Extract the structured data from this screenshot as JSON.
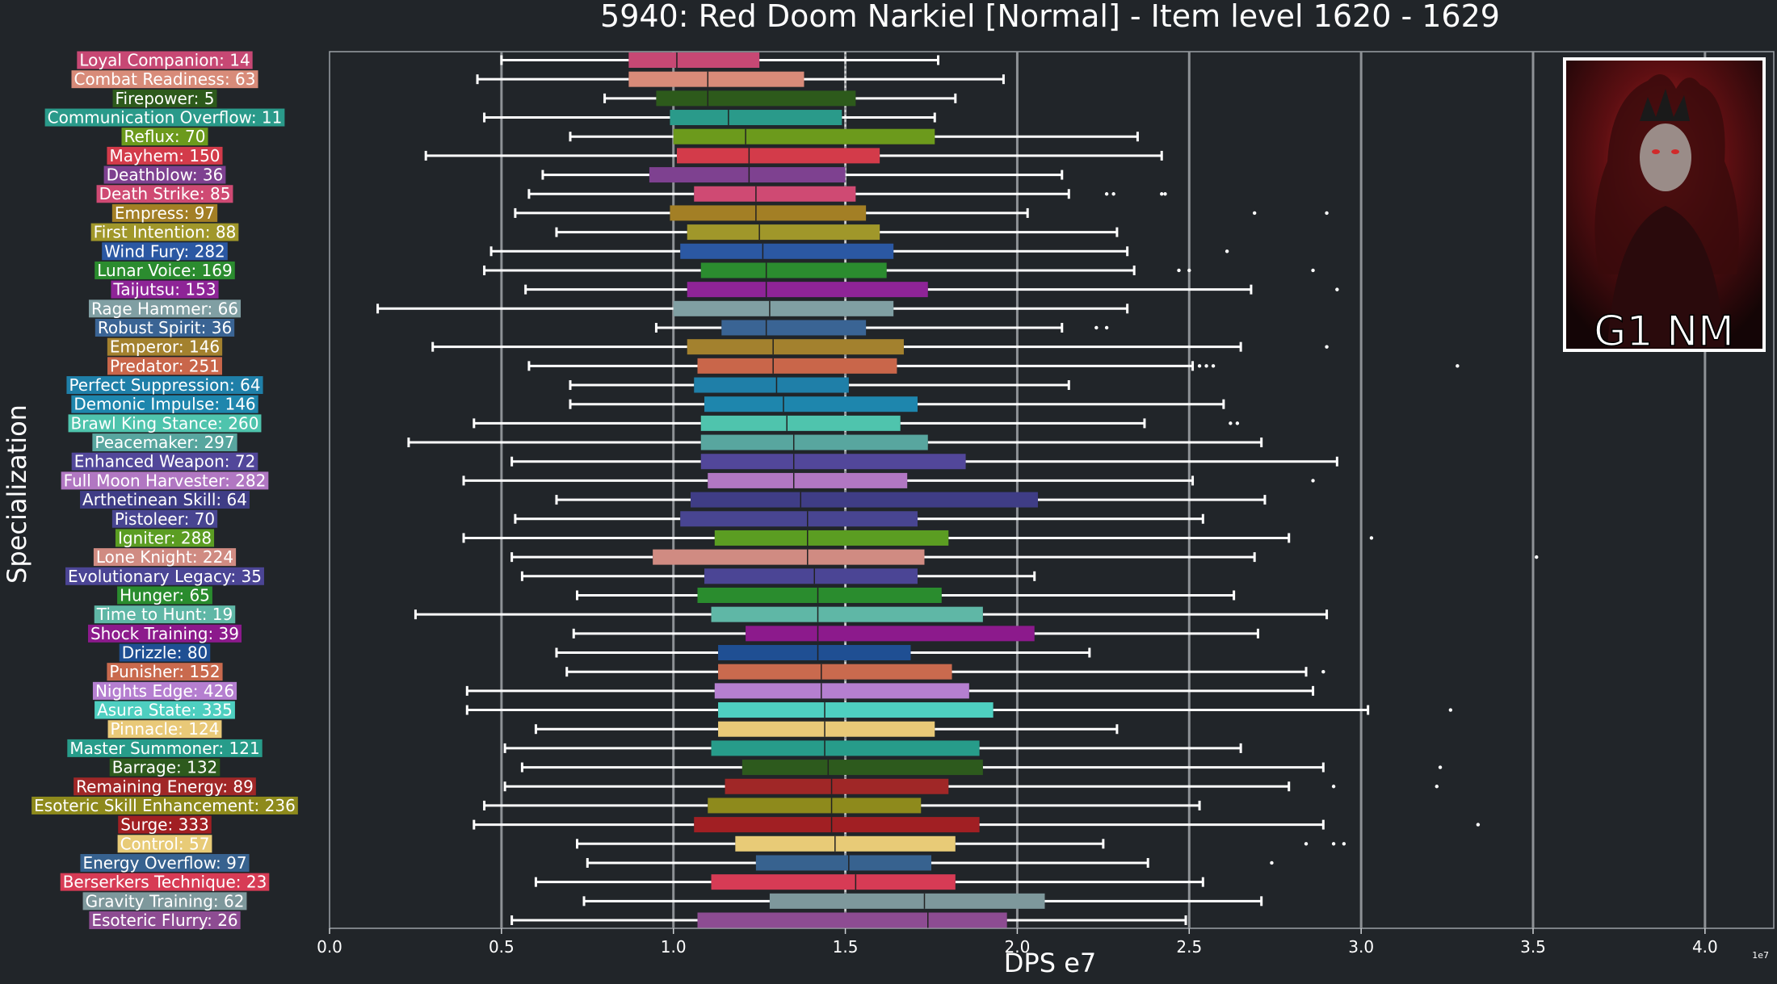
{
  "chart_data": {
    "type": "boxplot",
    "title": "5940: Red Doom Narkiel [Normal] - Item level 1620 - 1629",
    "xlabel": "DPS e7",
    "ylabel": "Specialization",
    "x_offset_label": "1e7",
    "xlim": [
      0,
      4.2
    ],
    "xticks": [
      "0.0",
      "0.5",
      "1.0",
      "1.5",
      "2.0",
      "2.5",
      "3.0",
      "3.5",
      "4.0"
    ],
    "reference_line": 1.5,
    "badge_text": "G1 NM",
    "series": [
      {
        "label": "Loyal Companion: 14",
        "color": "#c74874",
        "whisker_low": 0.5,
        "q1": 0.87,
        "median": 1.01,
        "q3": 1.25,
        "whisker_high": 1.77,
        "outliers": []
      },
      {
        "label": "Combat Readiness: 63",
        "color": "#d88b79",
        "whisker_low": 0.43,
        "q1": 0.87,
        "median": 1.1,
        "q3": 1.38,
        "whisker_high": 1.96,
        "outliers": []
      },
      {
        "label": "Firepower: 5",
        "color": "#2d5a1b",
        "whisker_low": 0.8,
        "q1": 0.95,
        "median": 1.1,
        "q3": 1.53,
        "whisker_high": 1.82,
        "outliers": []
      },
      {
        "label": "Communication Overflow: 11",
        "color": "#2a9a8a",
        "whisker_low": 0.45,
        "q1": 0.99,
        "median": 1.16,
        "q3": 1.49,
        "whisker_high": 1.76,
        "outliers": []
      },
      {
        "label": "Reflux: 70",
        "color": "#6c9a1c",
        "whisker_low": 0.7,
        "q1": 1.0,
        "median": 1.21,
        "q3": 1.76,
        "whisker_high": 2.35,
        "outliers": []
      },
      {
        "label": "Mayhem: 150",
        "color": "#d33b4a",
        "whisker_low": 0.28,
        "q1": 1.01,
        "median": 1.22,
        "q3": 1.6,
        "whisker_high": 2.42,
        "outliers": []
      },
      {
        "label": "Deathblow: 36",
        "color": "#7e4190",
        "whisker_low": 0.62,
        "q1": 0.93,
        "median": 1.22,
        "q3": 1.5,
        "whisker_high": 2.13,
        "outliers": []
      },
      {
        "label": "Death Strike: 85",
        "color": "#cf4a73",
        "whisker_low": 0.58,
        "q1": 1.06,
        "median": 1.24,
        "q3": 1.53,
        "whisker_high": 2.15,
        "outliers": [
          2.26,
          2.28,
          2.42,
          2.43
        ]
      },
      {
        "label": "Empress: 97",
        "color": "#a37f25",
        "whisker_low": 0.54,
        "q1": 0.99,
        "median": 1.24,
        "q3": 1.56,
        "whisker_high": 2.03,
        "outliers": [
          2.69,
          2.9
        ]
      },
      {
        "label": "First Intention: 88",
        "color": "#a0972a",
        "whisker_low": 0.66,
        "q1": 1.04,
        "median": 1.25,
        "q3": 1.6,
        "whisker_high": 2.29,
        "outliers": []
      },
      {
        "label": "Wind Fury: 282",
        "color": "#2b58a3",
        "whisker_low": 0.47,
        "q1": 1.02,
        "median": 1.26,
        "q3": 1.64,
        "whisker_high": 2.32,
        "outliers": [
          2.61
        ]
      },
      {
        "label": "Lunar Voice: 169",
        "color": "#2b8c2f",
        "whisker_low": 0.45,
        "q1": 1.08,
        "median": 1.27,
        "q3": 1.62,
        "whisker_high": 2.34,
        "outliers": [
          2.47,
          2.5,
          2.86
        ]
      },
      {
        "label": "Taijutsu: 153",
        "color": "#8e2497",
        "whisker_low": 0.57,
        "q1": 1.04,
        "median": 1.27,
        "q3": 1.74,
        "whisker_high": 2.68,
        "outliers": [
          2.93
        ]
      },
      {
        "label": "Rage Hammer: 66",
        "color": "#809fa3",
        "whisker_low": 0.14,
        "q1": 1.0,
        "median": 1.28,
        "q3": 1.64,
        "whisker_high": 2.32,
        "outliers": []
      },
      {
        "label": "Robust Spirit: 36",
        "color": "#3a6494",
        "whisker_low": 0.95,
        "q1": 1.14,
        "median": 1.27,
        "q3": 1.56,
        "whisker_high": 2.13,
        "outliers": [
          2.23,
          2.26
        ]
      },
      {
        "label": "Emperor: 146",
        "color": "#a3812e",
        "whisker_low": 0.3,
        "q1": 1.04,
        "median": 1.29,
        "q3": 1.67,
        "whisker_high": 2.65,
        "outliers": [
          2.9
        ]
      },
      {
        "label": "Predator: 251",
        "color": "#c9664a",
        "whisker_low": 0.58,
        "q1": 1.07,
        "median": 1.29,
        "q3": 1.65,
        "whisker_high": 2.51,
        "outliers": [
          2.53,
          2.55,
          2.57,
          3.28
        ]
      },
      {
        "label": "Perfect Suppression: 64",
        "color": "#1f7fa8",
        "whisker_low": 0.7,
        "q1": 1.06,
        "median": 1.3,
        "q3": 1.51,
        "whisker_high": 2.15,
        "outliers": []
      },
      {
        "label": "Demonic Impulse: 146",
        "color": "#1e86ad",
        "whisker_low": 0.7,
        "q1": 1.09,
        "median": 1.32,
        "q3": 1.71,
        "whisker_high": 2.6,
        "outliers": []
      },
      {
        "label": "Brawl King Stance: 260",
        "color": "#4fc4ad",
        "whisker_low": 0.42,
        "q1": 1.08,
        "median": 1.33,
        "q3": 1.66,
        "whisker_high": 2.37,
        "outliers": [
          2.62,
          2.64
        ]
      },
      {
        "label": "Peacemaker: 297",
        "color": "#58a69f",
        "whisker_low": 0.23,
        "q1": 1.08,
        "median": 1.35,
        "q3": 1.74,
        "whisker_high": 2.71,
        "outliers": []
      },
      {
        "label": "Enhanced Weapon: 72",
        "color": "#52479a",
        "whisker_low": 0.53,
        "q1": 1.08,
        "median": 1.35,
        "q3": 1.85,
        "whisker_high": 2.93,
        "outliers": []
      },
      {
        "label": "Full Moon Harvester: 282",
        "color": "#b177c2",
        "whisker_low": 0.39,
        "q1": 1.1,
        "median": 1.35,
        "q3": 1.68,
        "whisker_high": 2.51,
        "outliers": [
          2.86
        ]
      },
      {
        "label": "Arthetinean Skill: 64",
        "color": "#3f3d86",
        "whisker_low": 0.66,
        "q1": 1.05,
        "median": 1.37,
        "q3": 2.06,
        "whisker_high": 2.72,
        "outliers": []
      },
      {
        "label": "Pistoleer: 70",
        "color": "#484591",
        "whisker_low": 0.54,
        "q1": 1.02,
        "median": 1.39,
        "q3": 1.71,
        "whisker_high": 2.54,
        "outliers": []
      },
      {
        "label": "Igniter: 288",
        "color": "#5b9d22",
        "whisker_low": 0.39,
        "q1": 1.12,
        "median": 1.39,
        "q3": 1.8,
        "whisker_high": 2.79,
        "outliers": [
          3.03
        ]
      },
      {
        "label": "Lone Knight: 224",
        "color": "#d08b82",
        "whisker_low": 0.53,
        "q1": 0.94,
        "median": 1.39,
        "q3": 1.73,
        "whisker_high": 2.69,
        "outliers": [
          3.51
        ]
      },
      {
        "label": "Evolutionary Legacy: 35",
        "color": "#4b4595",
        "whisker_low": 0.56,
        "q1": 1.09,
        "median": 1.41,
        "q3": 1.71,
        "whisker_high": 2.05,
        "outliers": []
      },
      {
        "label": "Hunger: 65",
        "color": "#2a8c2e",
        "whisker_low": 0.72,
        "q1": 1.07,
        "median": 1.42,
        "q3": 1.78,
        "whisker_high": 2.63,
        "outliers": []
      },
      {
        "label": "Time to Hunt: 19",
        "color": "#5fb7a6",
        "whisker_low": 0.25,
        "q1": 1.11,
        "median": 1.42,
        "q3": 1.9,
        "whisker_high": 2.9,
        "outliers": []
      },
      {
        "label": "Shock Training: 39",
        "color": "#8c1a8c",
        "whisker_low": 0.71,
        "q1": 1.21,
        "median": 1.42,
        "q3": 2.05,
        "whisker_high": 2.7,
        "outliers": []
      },
      {
        "label": "Drizzle: 80",
        "color": "#1f4f93",
        "whisker_low": 0.66,
        "q1": 1.13,
        "median": 1.42,
        "q3": 1.69,
        "whisker_high": 2.21,
        "outliers": []
      },
      {
        "label": "Punisher: 152",
        "color": "#c96a4e",
        "whisker_low": 0.69,
        "q1": 1.13,
        "median": 1.43,
        "q3": 1.81,
        "whisker_high": 2.84,
        "outliers": [
          2.89
        ]
      },
      {
        "label": "Nights Edge: 426",
        "color": "#b57fd0",
        "whisker_low": 0.4,
        "q1": 1.12,
        "median": 1.43,
        "q3": 1.86,
        "whisker_high": 2.86,
        "outliers": []
      },
      {
        "label": "Asura State: 335",
        "color": "#4ecfc0",
        "whisker_low": 0.4,
        "q1": 1.13,
        "median": 1.44,
        "q3": 1.93,
        "whisker_high": 3.02,
        "outliers": [
          3.26
        ]
      },
      {
        "label": "Pinnacle: 124",
        "color": "#e9c978",
        "whisker_low": 0.6,
        "q1": 1.13,
        "median": 1.44,
        "q3": 1.76,
        "whisker_high": 2.29,
        "outliers": []
      },
      {
        "label": "Master Summoner: 121",
        "color": "#279c8a",
        "whisker_low": 0.51,
        "q1": 1.11,
        "median": 1.44,
        "q3": 1.89,
        "whisker_high": 2.65,
        "outliers": []
      },
      {
        "label": "Barrage: 132",
        "color": "#2d5a1d",
        "whisker_low": 0.56,
        "q1": 1.2,
        "median": 1.45,
        "q3": 1.9,
        "whisker_high": 2.89,
        "outliers": [
          3.23
        ]
      },
      {
        "label": "Remaining Energy: 89",
        "color": "#a02727",
        "whisker_low": 0.51,
        "q1": 1.15,
        "median": 1.46,
        "q3": 1.8,
        "whisker_high": 2.79,
        "outliers": [
          2.92,
          3.22
        ]
      },
      {
        "label": "Esoteric Skill Enhancement: 236",
        "color": "#8e8a1c",
        "whisker_low": 0.45,
        "q1": 1.1,
        "median": 1.46,
        "q3": 1.72,
        "whisker_high": 2.53,
        "outliers": []
      },
      {
        "label": "Surge: 333",
        "color": "#a11f23",
        "whisker_low": 0.42,
        "q1": 1.06,
        "median": 1.46,
        "q3": 1.89,
        "whisker_high": 2.89,
        "outliers": [
          3.34
        ]
      },
      {
        "label": "Control: 57",
        "color": "#e8cb77",
        "whisker_low": 0.72,
        "q1": 1.18,
        "median": 1.47,
        "q3": 1.82,
        "whisker_high": 2.25,
        "outliers": [
          2.84,
          2.92,
          2.95
        ]
      },
      {
        "label": "Energy Overflow: 97",
        "color": "#37628f",
        "whisker_low": 0.75,
        "q1": 1.24,
        "median": 1.51,
        "q3": 1.75,
        "whisker_high": 2.38,
        "outliers": [
          2.74
        ]
      },
      {
        "label": "Berserkers Technique: 23",
        "color": "#d73b55",
        "whisker_low": 0.6,
        "q1": 1.11,
        "median": 1.53,
        "q3": 1.82,
        "whisker_high": 2.54,
        "outliers": []
      },
      {
        "label": "Gravity Training: 62",
        "color": "#7e989c",
        "whisker_low": 0.74,
        "q1": 1.28,
        "median": 1.73,
        "q3": 2.08,
        "whisker_high": 2.71,
        "outliers": []
      },
      {
        "label": "Esoteric Flurry: 26",
        "color": "#8d4c92",
        "whisker_low": 0.53,
        "q1": 1.07,
        "median": 1.74,
        "q3": 1.97,
        "whisker_high": 2.49,
        "outliers": []
      }
    ]
  }
}
